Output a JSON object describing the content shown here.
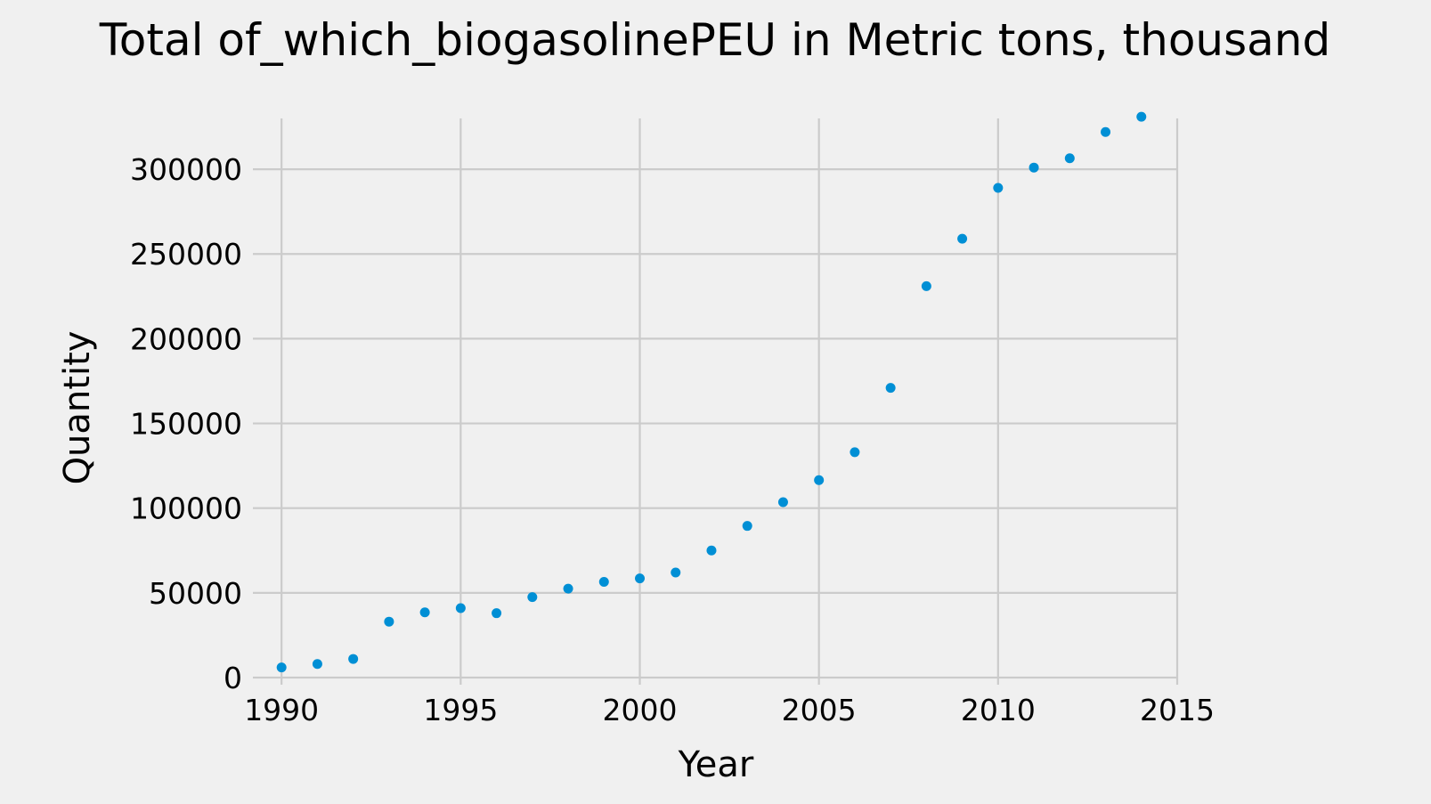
{
  "chart_data": {
    "type": "scatter",
    "title": "Total of_which_biogasolinePEU in Metric tons,  thousand",
    "xlabel": "Year",
    "ylabel": "Quantity",
    "xlim": [
      1989.2,
      2015
    ],
    "ylim": [
      0,
      330000
    ],
    "xticks": [
      1990,
      1995,
      2000,
      2005,
      2010,
      2015
    ],
    "yticks": [
      0,
      50000,
      100000,
      150000,
      200000,
      250000,
      300000
    ],
    "grid": true,
    "series_color": "#008fd5",
    "series": [
      {
        "x": [
          1990,
          1991,
          1992,
          1993,
          1994,
          1995,
          1996,
          1997,
          1998,
          1999,
          2000,
          2001,
          2002,
          2003,
          2004,
          2005,
          2006,
          2007,
          2008,
          2009,
          2010,
          2011,
          2012,
          2013,
          2014
        ],
        "values": [
          6000,
          8000,
          11000,
          33000,
          38500,
          41000,
          38000,
          47500,
          52500,
          56500,
          58500,
          62000,
          75000,
          89500,
          103500,
          116500,
          133000,
          171000,
          231000,
          259000,
          289000,
          301000,
          306500,
          322000,
          331000
        ]
      }
    ]
  }
}
